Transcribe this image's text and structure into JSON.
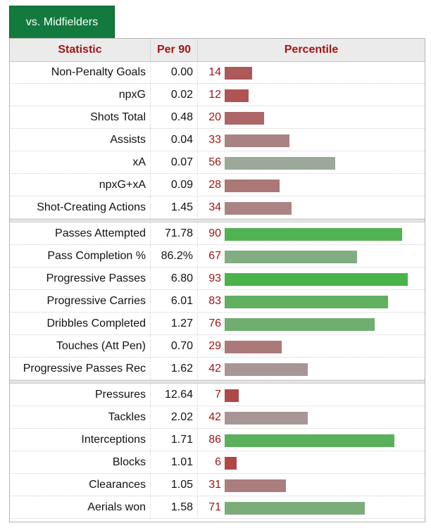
{
  "tab": {
    "label": "vs. Midfielders"
  },
  "header": {
    "statistic": "Statistic",
    "per90": "Per 90",
    "percentile": "Percentile"
  },
  "colors": {
    "tab": "#117a3c",
    "header_text": "#a31515",
    "low": "#b03a3a",
    "mid": "#a7a7a7",
    "high": "#3bb53b"
  },
  "chart_data": {
    "type": "table",
    "columns": [
      "Statistic",
      "Per 90",
      "Percentile"
    ],
    "percentile_max": 99,
    "groups": [
      [
        {
          "stat": "Non-Penalty Goals",
          "per90": "0.00",
          "percentile": 14
        },
        {
          "stat": "npxG",
          "per90": "0.02",
          "percentile": 12
        },
        {
          "stat": "Shots Total",
          "per90": "0.48",
          "percentile": 20
        },
        {
          "stat": "Assists",
          "per90": "0.04",
          "percentile": 33
        },
        {
          "stat": "xA",
          "per90": "0.07",
          "percentile": 56
        },
        {
          "stat": "npxG+xA",
          "per90": "0.09",
          "percentile": 28
        },
        {
          "stat": "Shot-Creating Actions",
          "per90": "1.45",
          "percentile": 34
        }
      ],
      [
        {
          "stat": "Passes Attempted",
          "per90": "71.78",
          "percentile": 90
        },
        {
          "stat": "Pass Completion %",
          "per90": "86.2%",
          "percentile": 67
        },
        {
          "stat": "Progressive Passes",
          "per90": "6.80",
          "percentile": 93
        },
        {
          "stat": "Progressive Carries",
          "per90": "6.01",
          "percentile": 83
        },
        {
          "stat": "Dribbles Completed",
          "per90": "1.27",
          "percentile": 76
        },
        {
          "stat": "Touches (Att Pen)",
          "per90": "0.70",
          "percentile": 29
        },
        {
          "stat": "Progressive Passes Rec",
          "per90": "1.62",
          "percentile": 42
        }
      ],
      [
        {
          "stat": "Pressures",
          "per90": "12.64",
          "percentile": 7
        },
        {
          "stat": "Tackles",
          "per90": "2.02",
          "percentile": 42
        },
        {
          "stat": "Interceptions",
          "per90": "1.71",
          "percentile": 86
        },
        {
          "stat": "Blocks",
          "per90": "1.01",
          "percentile": 6
        },
        {
          "stat": "Clearances",
          "per90": "1.05",
          "percentile": 31
        },
        {
          "stat": "Aerials won",
          "per90": "1.58",
          "percentile": 71
        }
      ]
    ]
  }
}
